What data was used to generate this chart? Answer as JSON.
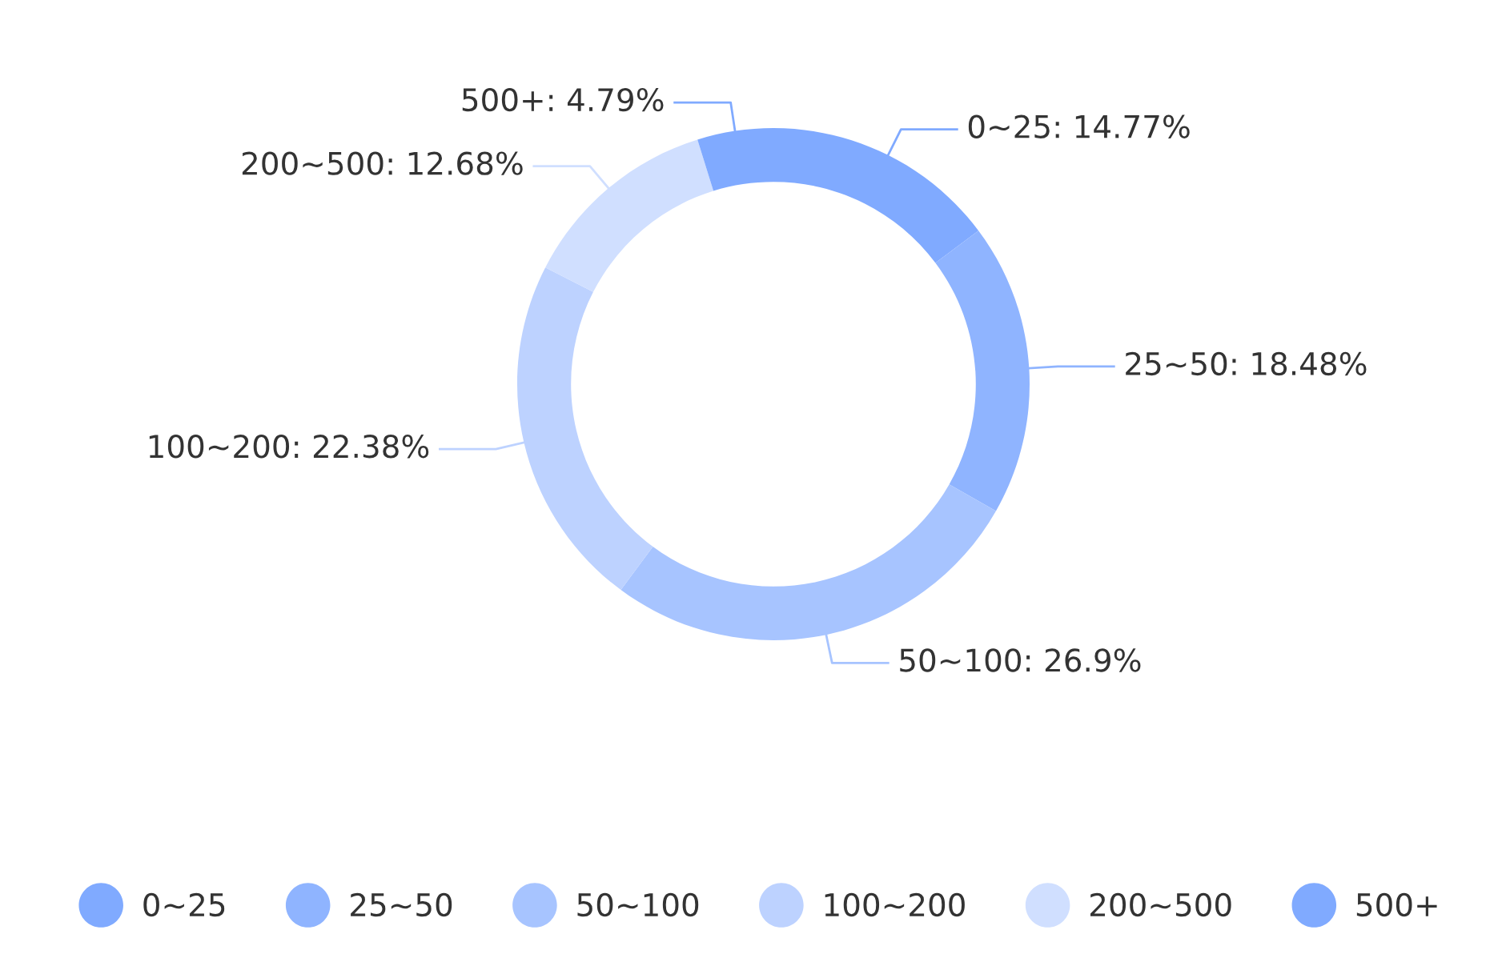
{
  "chart_data": {
    "type": "donut",
    "categories": [
      "0~25",
      "25~50",
      "50~100",
      "100~200",
      "200~500",
      "500+"
    ],
    "values": [
      14.77,
      18.48,
      26.9,
      22.38,
      12.68,
      4.79
    ],
    "colors": [
      "#80aaff",
      "#8fb4ff",
      "#a7c4ff",
      "#bdd2ff",
      "#d0dfff",
      "#80aaff"
    ],
    "value_labels": [
      "0~25: 14.77%",
      "25~50: 18.48%",
      "50~100: 26.9%",
      "100~200: 22.38%",
      "200~500: 12.68%",
      "500+: 4.79%"
    ],
    "legend": "bottom"
  }
}
